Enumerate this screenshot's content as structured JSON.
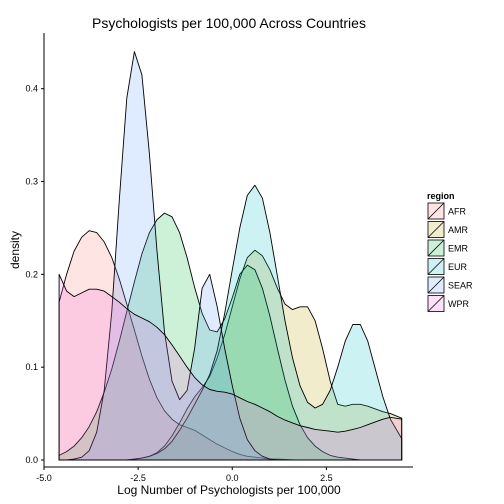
{
  "chart_data": {
    "type": "area",
    "title": "Psychologists per 100,000 Across Countries",
    "xlabel": "Log Number of Psychologists per 100,000",
    "ylabel": "density",
    "xlim": [
      -5.0,
      4.8
    ],
    "ylim": [
      0.0,
      0.46
    ],
    "x_ticks": [
      -5.0,
      -2.5,
      0.0,
      2.5
    ],
    "x_tick_labels": [
      "-5.0",
      "-2.5",
      "0.0",
      "2.5"
    ],
    "y_ticks": [
      0.0,
      0.1,
      0.2,
      0.3,
      0.4
    ],
    "y_tick_labels": [
      "0.0",
      "0.1",
      "0.2",
      "0.3",
      "0.4"
    ],
    "grid": false,
    "legend": {
      "title": "region",
      "position": "right"
    },
    "x_min_data": -4.6,
    "x_max_data": 4.5,
    "series": [
      {
        "name": "AFR",
        "color": "#F8766D",
        "x": [
          -4.6,
          -4.4,
          -4.2,
          -4.0,
          -3.8,
          -3.6,
          -3.4,
          -3.2,
          -3.0,
          -2.8,
          -2.6,
          -2.4,
          -2.2,
          -2.0,
          -1.8,
          -1.6,
          -1.4,
          -1.2,
          -1.0,
          -0.8,
          -0.6,
          -0.4,
          -0.2,
          0.0,
          0.2,
          0.4,
          0.6,
          0.8,
          1.0,
          1.2,
          1.4,
          1.6,
          1.8,
          2.0,
          2.2,
          2.4,
          2.6,
          2.8,
          3.0,
          3.2,
          3.4,
          3.6,
          3.8,
          4.0,
          4.2,
          4.5
        ],
        "y": [
          0.17,
          0.2,
          0.225,
          0.24,
          0.247,
          0.245,
          0.235,
          0.218,
          0.195,
          0.168,
          0.14,
          0.112,
          0.087,
          0.067,
          0.053,
          0.044,
          0.038,
          0.035,
          0.032,
          0.027,
          0.022,
          0.017,
          0.013,
          0.009,
          0.006,
          0.004,
          0.003,
          0.002,
          0.001,
          0.001,
          0.0005,
          0.0002,
          0.0001,
          0.0,
          0.0,
          0.0,
          0.0,
          0.0,
          0.0,
          0.0,
          0.0,
          0.0,
          0.0,
          0.0,
          0.0,
          0.0
        ]
      },
      {
        "name": "AMR",
        "color": "#B79F00",
        "x": [
          -4.6,
          -4.4,
          -4.2,
          -4.0,
          -3.8,
          -3.6,
          -3.4,
          -3.2,
          -3.0,
          -2.8,
          -2.6,
          -2.4,
          -2.2,
          -2.0,
          -1.8,
          -1.6,
          -1.4,
          -1.2,
          -1.0,
          -0.8,
          -0.6,
          -0.4,
          -0.2,
          0.0,
          0.2,
          0.4,
          0.6,
          0.8,
          1.0,
          1.2,
          1.4,
          1.6,
          1.8,
          2.0,
          2.2,
          2.4,
          2.6,
          2.8,
          3.0,
          3.2,
          3.4,
          3.6,
          3.8,
          4.0,
          4.2,
          4.5
        ],
        "y": [
          0.0,
          0.0,
          0.0,
          0.0,
          0.0,
          0.0,
          0.0,
          0.0,
          0.0,
          0.0,
          0.001,
          0.002,
          0.004,
          0.008,
          0.015,
          0.026,
          0.04,
          0.055,
          0.068,
          0.078,
          0.09,
          0.11,
          0.135,
          0.165,
          0.195,
          0.218,
          0.226,
          0.22,
          0.205,
          0.185,
          0.168,
          0.162,
          0.165,
          0.165,
          0.15,
          0.12,
          0.085,
          0.06,
          0.058,
          0.06,
          0.06,
          0.058,
          0.055,
          0.052,
          0.05,
          0.045
        ]
      },
      {
        "name": "EMR",
        "color": "#00BA38",
        "x": [
          -4.6,
          -4.4,
          -4.2,
          -4.0,
          -3.8,
          -3.6,
          -3.4,
          -3.2,
          -3.0,
          -2.8,
          -2.6,
          -2.4,
          -2.2,
          -2.0,
          -1.8,
          -1.6,
          -1.4,
          -1.2,
          -1.0,
          -0.8,
          -0.6,
          -0.4,
          -0.2,
          0.0,
          0.2,
          0.4,
          0.6,
          0.8,
          1.0,
          1.2,
          1.4,
          1.6,
          1.8,
          2.0,
          2.2,
          2.4,
          2.6,
          2.8,
          3.0,
          3.2,
          3.4,
          3.6,
          3.8,
          4.0,
          4.2,
          4.5
        ],
        "y": [
          0.005,
          0.009,
          0.015,
          0.024,
          0.036,
          0.052,
          0.073,
          0.098,
          0.128,
          0.16,
          0.192,
          0.222,
          0.245,
          0.259,
          0.266,
          0.262,
          0.245,
          0.218,
          0.186,
          0.158,
          0.14,
          0.138,
          0.152,
          0.175,
          0.2,
          0.21,
          0.205,
          0.185,
          0.155,
          0.12,
          0.086,
          0.058,
          0.038,
          0.024,
          0.015,
          0.009,
          0.005,
          0.003,
          0.002,
          0.001,
          0.0,
          0.0,
          0.0,
          0.0,
          0.0,
          0.0
        ]
      },
      {
        "name": "EUR",
        "color": "#00BFC4",
        "x": [
          -4.6,
          -4.4,
          -4.2,
          -4.0,
          -3.8,
          -3.6,
          -3.4,
          -3.2,
          -3.0,
          -2.8,
          -2.6,
          -2.4,
          -2.2,
          -2.0,
          -1.8,
          -1.6,
          -1.4,
          -1.2,
          -1.0,
          -0.8,
          -0.6,
          -0.4,
          -0.2,
          0.0,
          0.2,
          0.4,
          0.6,
          0.8,
          1.0,
          1.2,
          1.4,
          1.6,
          1.8,
          2.0,
          2.2,
          2.4,
          2.6,
          2.8,
          3.0,
          3.2,
          3.4,
          3.6,
          3.8,
          4.0,
          4.2,
          4.5
        ],
        "y": [
          0.0,
          0.0,
          0.0,
          0.0,
          0.0,
          0.0,
          0.0,
          0.0,
          0.0,
          0.0,
          0.001,
          0.002,
          0.004,
          0.007,
          0.012,
          0.02,
          0.032,
          0.045,
          0.06,
          0.075,
          0.092,
          0.118,
          0.158,
          0.205,
          0.25,
          0.285,
          0.296,
          0.282,
          0.245,
          0.198,
          0.15,
          0.11,
          0.08,
          0.062,
          0.056,
          0.06,
          0.075,
          0.1,
          0.128,
          0.146,
          0.146,
          0.128,
          0.098,
          0.068,
          0.044,
          0.023
        ]
      },
      {
        "name": "SEAR",
        "color": "#619CFF",
        "x": [
          -4.6,
          -4.4,
          -4.2,
          -4.0,
          -3.8,
          -3.6,
          -3.4,
          -3.2,
          -3.0,
          -2.8,
          -2.6,
          -2.4,
          -2.2,
          -2.0,
          -1.8,
          -1.6,
          -1.4,
          -1.2,
          -1.0,
          -0.8,
          -0.6,
          -0.4,
          -0.2,
          0.0,
          0.2,
          0.4,
          0.6,
          0.8,
          1.0,
          1.2,
          1.4,
          1.6,
          1.8,
          2.0,
          2.2,
          2.4,
          2.6,
          2.8,
          3.0,
          3.2,
          3.4,
          3.6,
          3.8,
          4.0,
          4.2,
          4.5
        ],
        "y": [
          0.0,
          0.0,
          0.001,
          0.003,
          0.01,
          0.03,
          0.075,
          0.16,
          0.28,
          0.39,
          0.44,
          0.415,
          0.33,
          0.225,
          0.138,
          0.085,
          0.065,
          0.075,
          0.12,
          0.185,
          0.2,
          0.165,
          0.12,
          0.08,
          0.045,
          0.022,
          0.01,
          0.004,
          0.001,
          0.0,
          0.0,
          0.0,
          0.0,
          0.0,
          0.0,
          0.0,
          0.0,
          0.0,
          0.0,
          0.0,
          0.0,
          0.0,
          0.0,
          0.0,
          0.0,
          0.0
        ]
      },
      {
        "name": "WPR",
        "color": "#F564E3",
        "x": [
          -4.6,
          -4.4,
          -4.2,
          -4.0,
          -3.8,
          -3.6,
          -3.4,
          -3.2,
          -3.0,
          -2.8,
          -2.6,
          -2.4,
          -2.2,
          -2.0,
          -1.8,
          -1.6,
          -1.4,
          -1.2,
          -1.0,
          -0.8,
          -0.6,
          -0.4,
          -0.2,
          0.0,
          0.2,
          0.4,
          0.6,
          0.8,
          1.0,
          1.2,
          1.4,
          1.6,
          1.8,
          2.0,
          2.2,
          2.4,
          2.6,
          2.8,
          3.0,
          3.2,
          3.4,
          3.6,
          3.8,
          4.0,
          4.2,
          4.5
        ],
        "y": [
          0.2,
          0.182,
          0.176,
          0.18,
          0.184,
          0.184,
          0.182,
          0.176,
          0.17,
          0.163,
          0.157,
          0.153,
          0.149,
          0.143,
          0.135,
          0.124,
          0.112,
          0.1,
          0.089,
          0.081,
          0.076,
          0.074,
          0.073,
          0.071,
          0.067,
          0.063,
          0.06,
          0.056,
          0.052,
          0.047,
          0.043,
          0.04,
          0.037,
          0.035,
          0.033,
          0.032,
          0.031,
          0.03,
          0.031,
          0.033,
          0.035,
          0.038,
          0.041,
          0.044,
          0.046,
          0.044
        ]
      }
    ]
  }
}
